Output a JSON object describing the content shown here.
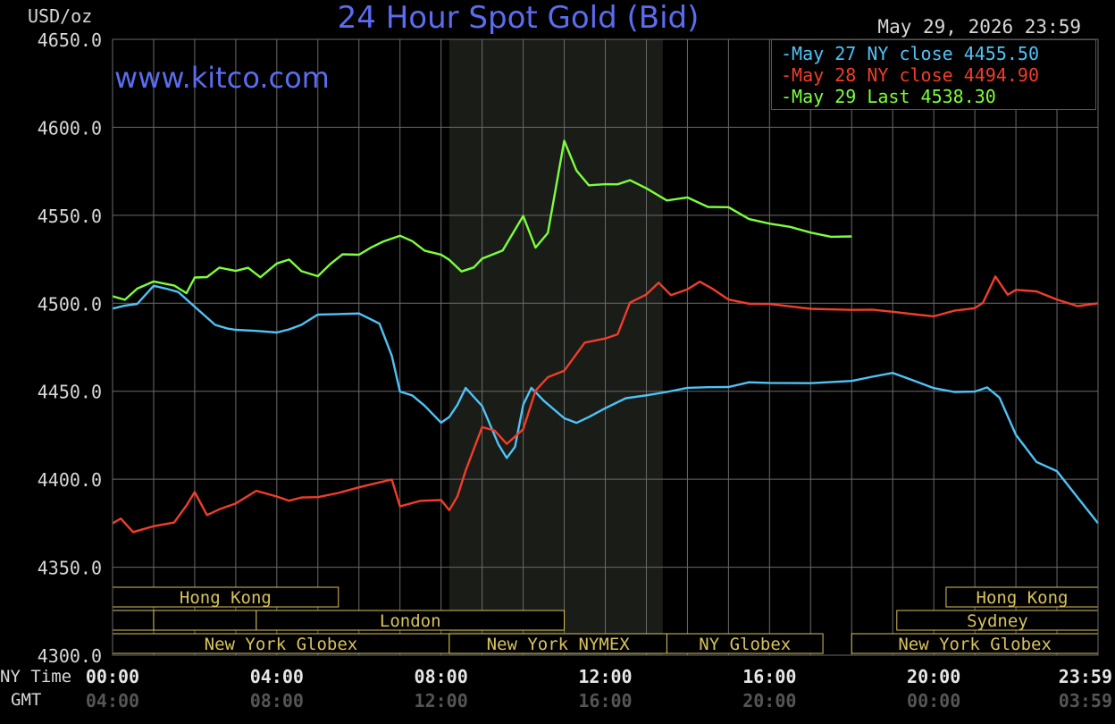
{
  "title": "24 Hour Spot Gold (Bid)",
  "unit_label": "USD/oz",
  "timestamp": "May 29, 2026 23:59",
  "watermark": "www.kitco.com",
  "row_labels": {
    "ny_time": "NY Time",
    "gmt": "GMT"
  },
  "colors": {
    "background": "#000000",
    "grid": "#6a6a6a",
    "nymex_shade": "#191c17",
    "title": "#5b6cf0",
    "session_text": "#d8c35a",
    "may27": "#4fc3f7",
    "may28": "#f23d2a",
    "may29": "#7dff3c"
  },
  "chart_data": {
    "type": "line",
    "title": "24 Hour Spot Gold (Bid)",
    "ylabel": "USD/oz",
    "ylim": [
      4300,
      4650
    ],
    "yticks": [
      "4650.0",
      "4600.0",
      "4550.0",
      "4500.0",
      "4450.0",
      "4400.0",
      "4350.0",
      "4300.0"
    ],
    "xlim_hours": [
      0,
      24
    ],
    "xticks_ny": [
      {
        "h": 0,
        "label": "00:00"
      },
      {
        "h": 4,
        "label": "04:00"
      },
      {
        "h": 8,
        "label": "08:00"
      },
      {
        "h": 12,
        "label": "12:00"
      },
      {
        "h": 16,
        "label": "16:00"
      },
      {
        "h": 20,
        "label": "20:00"
      },
      {
        "h": 24,
        "label": "23:59"
      }
    ],
    "xticks_gmt": [
      {
        "h": 0,
        "label": "04:00"
      },
      {
        "h": 4,
        "label": "08:00"
      },
      {
        "h": 8,
        "label": "12:00"
      },
      {
        "h": 12,
        "label": "16:00"
      },
      {
        "h": 16,
        "label": "20:00"
      },
      {
        "h": 20,
        "label": "00:00"
      },
      {
        "h": 24,
        "label": "03:59"
      }
    ],
    "grid": true,
    "legend_position": "top-right",
    "shaded_session_hours": [
      8.2,
      13.4
    ],
    "series": [
      {
        "name": "May 27 NY close 4455.50",
        "color": "#4fc3f7",
        "x": [
          0,
          0.3,
          0.6,
          1,
          1.3,
          1.6,
          2,
          2.5,
          2.8,
          3,
          3.5,
          4,
          4.3,
          4.6,
          5,
          5.5,
          6,
          6.5,
          6.8,
          7,
          7.3,
          7.6,
          8,
          8.2,
          8.4,
          8.6,
          9,
          9.4,
          9.6,
          9.8,
          10,
          10.2,
          10.5,
          11,
          11.3,
          11.6,
          12,
          12.5,
          13,
          13.5,
          14,
          14.5,
          15,
          15.5,
          16,
          17,
          18,
          18.5,
          19,
          19.5,
          20,
          20.5,
          21,
          21.3,
          21.6,
          22,
          22.5,
          23,
          23.5,
          24
        ],
        "y": [
          4497,
          4499,
          4500,
          4510,
          4508,
          4506,
          4498,
          4488,
          4486,
          4485,
          4484,
          4483,
          4485,
          4488,
          4494,
          4494,
          4494,
          4488,
          4470,
          4450,
          4448,
          4442,
          4432,
          4435,
          4442,
          4452,
          4442,
          4420,
          4412,
          4418,
          4442,
          4452,
          4445,
          4435,
          4432,
          4435,
          4440,
          4446,
          4448,
          4450,
          4452,
          4452,
          4452,
          4455,
          4455,
          4455,
          4456,
          4458,
          4460,
          4456,
          4452,
          4450,
          4450,
          4452,
          4446,
          4425,
          4410,
          4405,
          4390,
          4375
        ]
      },
      {
        "name": "May 28 NY close 4494.90",
        "color": "#f23d2a",
        "x": [
          0,
          0.2,
          0.5,
          1,
          1.5,
          1.8,
          2,
          2.3,
          2.6,
          3,
          3.5,
          4,
          4.3,
          4.6,
          5,
          5.5,
          6,
          6.5,
          6.8,
          7,
          7.5,
          8,
          8.2,
          8.4,
          8.6,
          9,
          9.3,
          9.6,
          10,
          10.3,
          10.6,
          11,
          11.5,
          12,
          12.3,
          12.6,
          13,
          13.3,
          13.6,
          14,
          14.3,
          14.6,
          15,
          15.5,
          16,
          17,
          18,
          18.5,
          19,
          19.5,
          20,
          20.5,
          21,
          21.2,
          21.5,
          21.8,
          22,
          22.5,
          23,
          23.5,
          24
        ],
        "y": [
          4375,
          4378,
          4370,
          4373,
          4375,
          4385,
          4393,
          4380,
          4383,
          4386,
          4393,
          4390,
          4388,
          4390,
          4390,
          4392,
          4395,
          4398,
          4400,
          4385,
          4388,
          4388,
          4382,
          4390,
          4405,
          4430,
          4428,
          4420,
          4428,
          4450,
          4458,
          4462,
          4478,
          4480,
          4482,
          4500,
          4505,
          4512,
          4505,
          4508,
          4512,
          4508,
          4502,
          4500,
          4500,
          4497,
          4496,
          4496,
          4495,
          4494,
          4493,
          4496,
          4497,
          4500,
          4515,
          4505,
          4508,
          4507,
          4502,
          4498,
          4500
        ]
      },
      {
        "name": "May 29 Last 4538.30",
        "color": "#7dff3c",
        "x": [
          0,
          0.3,
          0.6,
          1,
          1.5,
          1.8,
          2,
          2.3,
          2.6,
          3,
          3.3,
          3.6,
          4,
          4.3,
          4.6,
          5,
          5.3,
          5.6,
          6,
          6.3,
          6.6,
          7,
          7.3,
          7.6,
          8,
          8.2,
          8.5,
          8.8,
          9,
          9.5,
          10,
          10.3,
          10.6,
          11,
          11.3,
          11.6,
          12,
          12.3,
          12.6,
          13,
          13.5,
          14,
          14.5,
          15,
          15.5,
          16,
          16.5,
          17,
          17.5,
          18
        ],
        "y": [
          4504,
          4502,
          4508,
          4512,
          4510,
          4506,
          4515,
          4515,
          4520,
          4518,
          4520,
          4515,
          4523,
          4525,
          4518,
          4515,
          4522,
          4528,
          4528,
          4532,
          4535,
          4538,
          4535,
          4530,
          4528,
          4525,
          4518,
          4520,
          4525,
          4530,
          4550,
          4532,
          4540,
          4592,
          4575,
          4567,
          4568,
          4568,
          4570,
          4565,
          4558,
          4560,
          4555,
          4555,
          4548,
          4545,
          4543,
          4540,
          4538,
          4538
        ]
      }
    ],
    "sessions": [
      {
        "row": 0,
        "label": "Hong Kong",
        "start": 0,
        "end": 5.5
      },
      {
        "row": 0,
        "label": "Hong Kong",
        "start": 20.3,
        "end": 24
      },
      {
        "row": 1,
        "label": "",
        "start": 0,
        "end": 1
      },
      {
        "row": 1,
        "label": "",
        "start": 1,
        "end": 3.5
      },
      {
        "row": 1,
        "label": "London",
        "start": 3.5,
        "end": 11
      },
      {
        "row": 1,
        "label": "Sydney",
        "start": 19.1,
        "end": 24
      },
      {
        "row": 2,
        "label": "New York Globex",
        "start": 0,
        "end": 8.2
      },
      {
        "row": 2,
        "label": "New York NYMEX",
        "start": 8.2,
        "end": 13.5
      },
      {
        "row": 2,
        "label": "NY Globex",
        "start": 13.5,
        "end": 17.3
      },
      {
        "row": 2,
        "label": "New York Globex",
        "start": 18,
        "end": 24
      }
    ]
  }
}
